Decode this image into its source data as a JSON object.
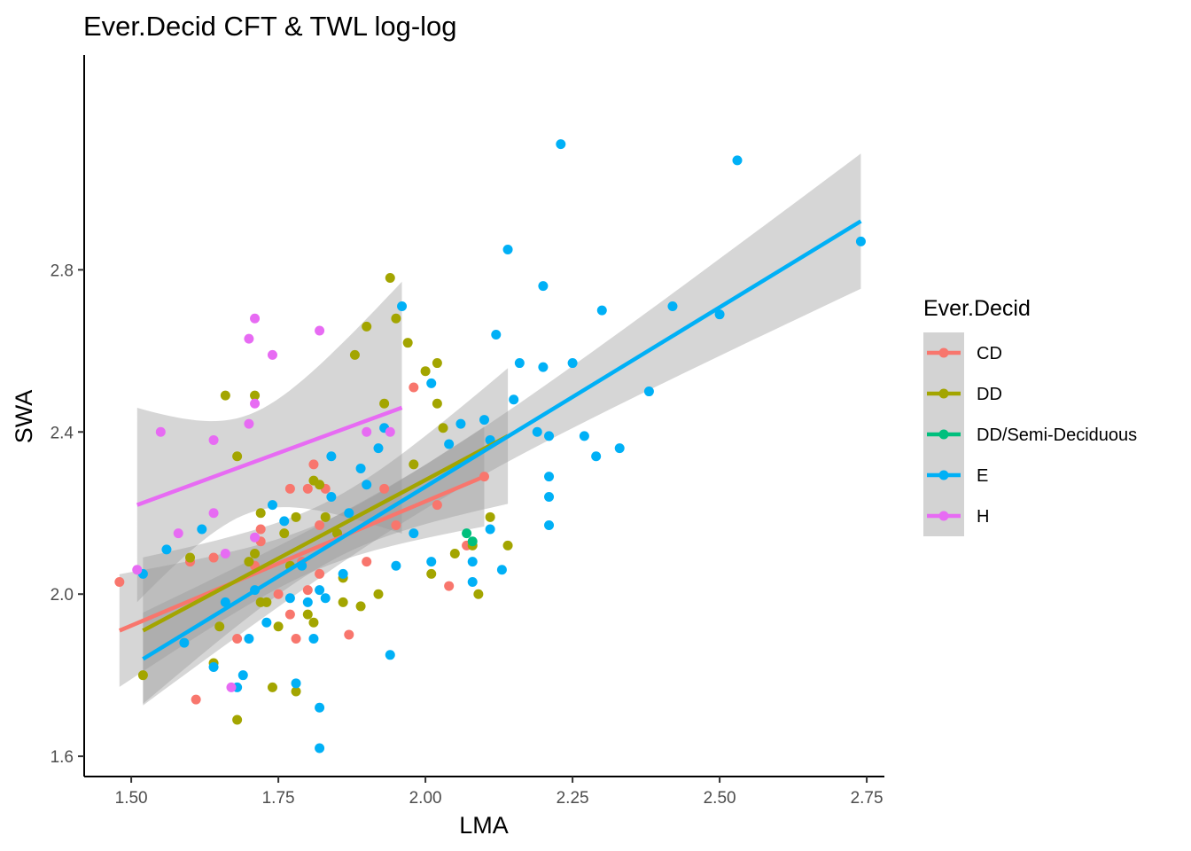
{
  "chart_data": {
    "type": "scatter",
    "title": "Ever.Decid CFT & TWL log-log",
    "xlabel": "LMA",
    "ylabel": "SWA",
    "xlim": [
      1.42,
      2.78
    ],
    "ylim": [
      1.55,
      3.33
    ],
    "x_ticks": [
      "1.50",
      "1.75",
      "2.00",
      "2.25",
      "2.50",
      "2.75"
    ],
    "y_ticks": [
      "1.6",
      "2.0",
      "2.4",
      "2.8"
    ],
    "grid": false,
    "legend_title": "Ever.Decid",
    "legend_position": "right",
    "series": [
      {
        "name": "CD",
        "color": "#F8766D",
        "points": [
          [
            1.48,
            2.03
          ],
          [
            1.6,
            2.08
          ],
          [
            1.61,
            1.74
          ],
          [
            1.64,
            2.09
          ],
          [
            1.68,
            1.89
          ],
          [
            1.71,
            2.07
          ],
          [
            1.72,
            2.16
          ],
          [
            1.72,
            2.13
          ],
          [
            1.75,
            2.0
          ],
          [
            1.77,
            2.26
          ],
          [
            1.77,
            1.95
          ],
          [
            1.78,
            1.89
          ],
          [
            1.79,
            2.08
          ],
          [
            1.8,
            2.01
          ],
          [
            1.8,
            2.26
          ],
          [
            1.81,
            2.32
          ],
          [
            1.82,
            2.17
          ],
          [
            1.82,
            2.05
          ],
          [
            1.83,
            2.26
          ],
          [
            1.87,
            1.9
          ],
          [
            1.9,
            2.08
          ],
          [
            1.93,
            2.26
          ],
          [
            1.95,
            2.17
          ],
          [
            1.98,
            2.51
          ],
          [
            2.02,
            2.22
          ],
          [
            2.04,
            2.02
          ],
          [
            2.07,
            2.12
          ],
          [
            2.1,
            2.29
          ]
        ],
        "fit": {
          "x": [
            1.48,
            2.1
          ],
          "y": [
            1.91,
            2.29
          ]
        }
      },
      {
        "name": "DD",
        "color": "#A3A500",
        "points": [
          [
            1.52,
            1.8
          ],
          [
            1.6,
            2.09
          ],
          [
            1.64,
            1.83
          ],
          [
            1.65,
            1.92
          ],
          [
            1.66,
            2.49
          ],
          [
            1.68,
            1.69
          ],
          [
            1.68,
            2.34
          ],
          [
            1.7,
            2.08
          ],
          [
            1.71,
            2.49
          ],
          [
            1.71,
            2.1
          ],
          [
            1.72,
            2.2
          ],
          [
            1.72,
            1.98
          ],
          [
            1.73,
            1.98
          ],
          [
            1.74,
            1.77
          ],
          [
            1.75,
            1.92
          ],
          [
            1.76,
            2.15
          ],
          [
            1.77,
            2.07
          ],
          [
            1.78,
            2.19
          ],
          [
            1.78,
            1.76
          ],
          [
            1.8,
            1.95
          ],
          [
            1.81,
            1.93
          ],
          [
            1.81,
            2.28
          ],
          [
            1.82,
            2.27
          ],
          [
            1.83,
            2.19
          ],
          [
            1.85,
            2.15
          ],
          [
            1.86,
            1.98
          ],
          [
            1.86,
            2.04
          ],
          [
            1.88,
            2.59
          ],
          [
            1.89,
            1.97
          ],
          [
            1.9,
            2.66
          ],
          [
            1.92,
            2.0
          ],
          [
            1.93,
            2.47
          ],
          [
            1.94,
            2.78
          ],
          [
            1.95,
            2.68
          ],
          [
            1.97,
            2.62
          ],
          [
            1.98,
            2.32
          ],
          [
            2.0,
            2.55
          ],
          [
            2.01,
            2.05
          ],
          [
            2.02,
            2.57
          ],
          [
            2.02,
            2.47
          ],
          [
            2.03,
            2.41
          ],
          [
            2.05,
            2.1
          ],
          [
            2.08,
            2.12
          ],
          [
            2.09,
            2.0
          ],
          [
            2.11,
            2.19
          ],
          [
            2.14,
            2.12
          ]
        ],
        "fit": {
          "x": [
            1.52,
            2.14
          ],
          "y": [
            1.91,
            2.39
          ]
        }
      },
      {
        "name": "DD/Semi-Deciduous",
        "color": "#00BF7D",
        "points": [
          [
            2.07,
            2.15
          ],
          [
            2.08,
            2.13
          ]
        ],
        "fit": null
      },
      {
        "name": "E",
        "color": "#00B0F6",
        "points": [
          [
            1.52,
            2.05
          ],
          [
            1.56,
            2.11
          ],
          [
            1.59,
            1.88
          ],
          [
            1.62,
            2.16
          ],
          [
            1.64,
            1.82
          ],
          [
            1.66,
            1.98
          ],
          [
            1.68,
            1.77
          ],
          [
            1.69,
            1.8
          ],
          [
            1.7,
            1.89
          ],
          [
            1.71,
            2.01
          ],
          [
            1.73,
            1.93
          ],
          [
            1.74,
            2.22
          ],
          [
            1.76,
            2.18
          ],
          [
            1.77,
            1.99
          ],
          [
            1.78,
            1.78
          ],
          [
            1.79,
            2.07
          ],
          [
            1.8,
            1.98
          ],
          [
            1.81,
            1.89
          ],
          [
            1.82,
            1.72
          ],
          [
            1.82,
            2.01
          ],
          [
            1.83,
            1.99
          ],
          [
            1.82,
            1.62
          ],
          [
            1.84,
            2.24
          ],
          [
            1.84,
            2.34
          ],
          [
            1.86,
            2.05
          ],
          [
            1.87,
            2.2
          ],
          [
            1.89,
            2.31
          ],
          [
            1.9,
            2.27
          ],
          [
            1.92,
            2.36
          ],
          [
            1.93,
            2.41
          ],
          [
            1.94,
            1.85
          ],
          [
            1.95,
            2.07
          ],
          [
            1.96,
            2.71
          ],
          [
            1.98,
            2.15
          ],
          [
            2.01,
            2.52
          ],
          [
            2.01,
            2.08
          ],
          [
            2.04,
            2.37
          ],
          [
            2.06,
            2.42
          ],
          [
            2.08,
            2.08
          ],
          [
            2.08,
            2.03
          ],
          [
            2.1,
            2.43
          ],
          [
            2.11,
            2.38
          ],
          [
            2.11,
            2.16
          ],
          [
            2.12,
            2.64
          ],
          [
            2.13,
            2.06
          ],
          [
            2.14,
            2.85
          ],
          [
            2.15,
            2.48
          ],
          [
            2.16,
            2.57
          ],
          [
            2.19,
            2.4
          ],
          [
            2.2,
            2.56
          ],
          [
            2.2,
            2.76
          ],
          [
            2.21,
            2.24
          ],
          [
            2.21,
            2.39
          ],
          [
            2.21,
            2.29
          ],
          [
            2.21,
            2.17
          ],
          [
            2.23,
            3.11
          ],
          [
            2.25,
            2.57
          ],
          [
            2.27,
            2.39
          ],
          [
            2.29,
            2.34
          ],
          [
            2.3,
            2.7
          ],
          [
            2.33,
            2.36
          ],
          [
            2.38,
            2.5
          ],
          [
            2.42,
            2.71
          ],
          [
            2.5,
            2.69
          ],
          [
            2.53,
            3.07
          ],
          [
            2.74,
            2.87
          ]
        ],
        "fit": {
          "x": [
            1.52,
            2.74
          ],
          "y": [
            1.84,
            2.92
          ]
        }
      },
      {
        "name": "H",
        "color": "#E76BF3",
        "points": [
          [
            1.51,
            2.06
          ],
          [
            1.55,
            2.4
          ],
          [
            1.58,
            2.15
          ],
          [
            1.64,
            2.38
          ],
          [
            1.64,
            2.2
          ],
          [
            1.66,
            2.1
          ],
          [
            1.67,
            1.77
          ],
          [
            1.7,
            2.63
          ],
          [
            1.7,
            2.42
          ],
          [
            1.71,
            2.68
          ],
          [
            1.71,
            2.47
          ],
          [
            1.71,
            2.14
          ],
          [
            1.74,
            2.59
          ],
          [
            1.82,
            2.65
          ],
          [
            1.9,
            2.4
          ],
          [
            1.94,
            2.4
          ]
        ],
        "fit": {
          "x": [
            1.51,
            1.96
          ],
          "y": [
            2.22,
            2.46
          ]
        }
      }
    ]
  }
}
